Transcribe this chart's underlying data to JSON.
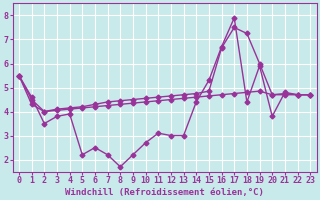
{
  "bg_color": "#c8eaea",
  "grid_color": "#ffffff",
  "line_color": "#993399",
  "marker": "D",
  "markersize": 2.5,
  "linewidth": 1.0,
  "xlabel": "Windchill (Refroidissement éolien,°C)",
  "xlabel_fontsize": 6.5,
  "tick_fontsize": 6,
  "xlim": [
    -0.5,
    23.5
  ],
  "ylim": [
    1.5,
    8.5
  ],
  "yticks": [
    2,
    3,
    4,
    5,
    6,
    7,
    8
  ],
  "xticks": [
    0,
    1,
    2,
    3,
    4,
    5,
    6,
    7,
    8,
    9,
    10,
    11,
    12,
    13,
    14,
    15,
    16,
    17,
    18,
    19,
    20,
    21,
    22,
    23
  ],
  "jagged": [
    5.5,
    4.6,
    3.5,
    3.8,
    3.9,
    2.2,
    2.5,
    2.2,
    1.7,
    2.2,
    2.7,
    3.1,
    3.0,
    3.0,
    4.4,
    5.3,
    6.7,
    7.9,
    4.4,
    5.9,
    3.8,
    4.8,
    4.7,
    4.7
  ],
  "rising": [
    5.5,
    4.3,
    4.0,
    4.1,
    4.15,
    4.2,
    4.3,
    4.4,
    4.45,
    4.5,
    4.55,
    4.6,
    4.65,
    4.7,
    4.75,
    4.85,
    6.65,
    7.5,
    7.25,
    6.0,
    4.7,
    4.75,
    4.7,
    4.7
  ],
  "flat": [
    5.5,
    4.5,
    4.0,
    4.05,
    4.1,
    4.15,
    4.2,
    4.25,
    4.3,
    4.35,
    4.4,
    4.45,
    4.5,
    4.55,
    4.6,
    4.65,
    4.7,
    4.75,
    4.8,
    4.85,
    4.7,
    4.7,
    4.7,
    4.7
  ]
}
